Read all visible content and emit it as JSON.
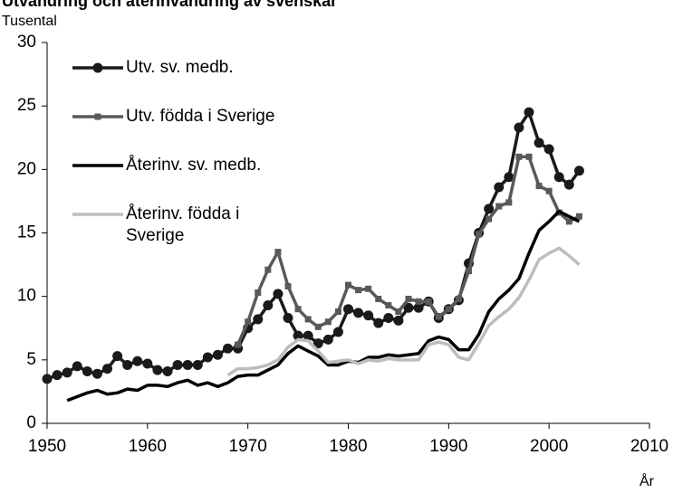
{
  "chart_data": {
    "type": "line",
    "title": "Utvandring och återinvandring av svenskar",
    "y_label": "Tusental",
    "x_label": "År",
    "xlim": [
      1950,
      2010
    ],
    "xticks": [
      1950,
      1960,
      1970,
      1980,
      1990,
      2000,
      2010
    ],
    "ylim": [
      0,
      30
    ],
    "yticks": [
      0,
      5,
      10,
      15,
      20,
      25,
      30
    ],
    "grid": false,
    "legend": "upper left",
    "series": [
      {
        "name": "Utv. sv. medb.",
        "color": "#1a1a1a",
        "marker": "circle",
        "x": [
          1950,
          1951,
          1952,
          1953,
          1954,
          1955,
          1956,
          1957,
          1958,
          1959,
          1960,
          1961,
          1962,
          1963,
          1964,
          1965,
          1966,
          1967,
          1968,
          1969,
          1970,
          1971,
          1972,
          1973,
          1974,
          1975,
          1976,
          1977,
          1978,
          1979,
          1980,
          1981,
          1982,
          1983,
          1984,
          1985,
          1986,
          1987,
          1988,
          1989,
          1990,
          1991,
          1992,
          1993,
          1994,
          1995,
          1996,
          1997,
          1998,
          1999,
          2000,
          2001,
          2002,
          2003
        ],
        "values": [
          3.5,
          3.8,
          4.0,
          4.5,
          4.1,
          3.9,
          4.3,
          5.3,
          4.6,
          4.9,
          4.7,
          4.2,
          4.1,
          4.6,
          4.6,
          4.6,
          5.2,
          5.4,
          5.9,
          5.9,
          7.5,
          8.2,
          9.3,
          10.2,
          8.3,
          6.9,
          6.9,
          6.3,
          6.6,
          7.2,
          9.0,
          8.7,
          8.5,
          7.9,
          8.3,
          8.1,
          9.1,
          9.1,
          9.6,
          8.3,
          9.0,
          9.7,
          12.6,
          15.0,
          16.9,
          18.6,
          19.4,
          23.3,
          24.5,
          22.1,
          21.6,
          19.4,
          18.8,
          19.9
        ]
      },
      {
        "name": "Utv. födda i Sverige",
        "color": "#595959",
        "marker": "square",
        "x": [
          1969,
          1970,
          1971,
          1972,
          1973,
          1974,
          1975,
          1976,
          1977,
          1978,
          1979,
          1980,
          1981,
          1982,
          1983,
          1984,
          1985,
          1986,
          1987,
          1988,
          1989,
          1990,
          1991,
          1992,
          1993,
          1994,
          1995,
          1996,
          1997,
          1998,
          1999,
          2000,
          2001,
          2002,
          2003
        ],
        "values": [
          6.2,
          8.0,
          10.3,
          12.1,
          13.5,
          10.8,
          9.0,
          8.2,
          7.6,
          8.0,
          8.8,
          10.9,
          10.5,
          10.6,
          9.8,
          9.3,
          8.8,
          9.8,
          9.6,
          9.6,
          8.4,
          9.0,
          9.8,
          12.0,
          14.9,
          16.1,
          17.1,
          17.4,
          21.0,
          21.0,
          18.7,
          18.3,
          16.6,
          15.9,
          16.3
        ]
      },
      {
        "name": "Återinv. sv. medb.",
        "color": "#000000",
        "marker": "none",
        "x": [
          1952,
          1953,
          1954,
          1955,
          1956,
          1957,
          1958,
          1959,
          1960,
          1961,
          1962,
          1963,
          1964,
          1965,
          1966,
          1967,
          1968,
          1969,
          1970,
          1971,
          1972,
          1973,
          1974,
          1975,
          1976,
          1977,
          1978,
          1979,
          1980,
          1981,
          1982,
          1983,
          1984,
          1985,
          1986,
          1987,
          1988,
          1989,
          1990,
          1991,
          1992,
          1993,
          1994,
          1995,
          1996,
          1997,
          1998,
          1999,
          2000,
          2001,
          2002,
          2003
        ],
        "values": [
          1.8,
          2.1,
          2.4,
          2.6,
          2.3,
          2.4,
          2.7,
          2.6,
          3.0,
          3.0,
          2.9,
          3.2,
          3.4,
          3.0,
          3.2,
          2.9,
          3.2,
          3.7,
          3.8,
          3.8,
          4.2,
          4.6,
          5.5,
          6.1,
          5.7,
          5.3,
          4.6,
          4.6,
          4.9,
          4.8,
          5.2,
          5.2,
          5.4,
          5.3,
          5.4,
          5.5,
          6.5,
          6.8,
          6.6,
          5.8,
          5.8,
          7.0,
          8.8,
          9.8,
          10.5,
          11.4,
          13.4,
          15.2,
          15.9,
          16.7,
          16.3,
          15.9
        ]
      },
      {
        "name": "Återinv. födda i Sverige",
        "color": "#bdbdbd",
        "marker": "none",
        "x": [
          1968,
          1969,
          1970,
          1971,
          1972,
          1973,
          1974,
          1975,
          1976,
          1977,
          1978,
          1979,
          1980,
          1981,
          1982,
          1983,
          1984,
          1985,
          1986,
          1987,
          1988,
          1989,
          1990,
          1991,
          1992,
          1993,
          1994,
          1995,
          1996,
          1997,
          1998,
          1999,
          2000,
          2001,
          2002,
          2003
        ],
        "values": [
          3.8,
          4.3,
          4.3,
          4.4,
          4.6,
          5.0,
          6.0,
          6.6,
          6.5,
          5.7,
          4.8,
          4.9,
          5.0,
          4.7,
          5.0,
          4.9,
          5.1,
          5.0,
          5.0,
          5.0,
          6.2,
          6.4,
          6.2,
          5.2,
          5.0,
          6.3,
          7.7,
          8.4,
          9.0,
          9.9,
          11.3,
          12.9,
          13.4,
          13.8,
          13.2,
          12.5
        ]
      }
    ]
  }
}
